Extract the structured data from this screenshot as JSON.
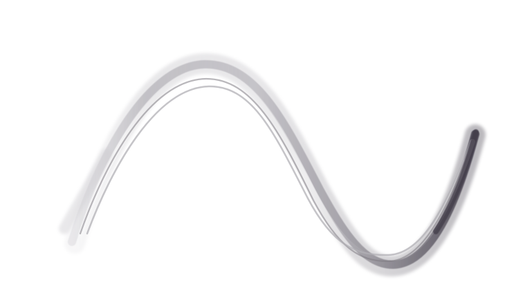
{
  "artwork": {
    "icon": "sine-wave-brush-stroke",
    "colors": {
      "background": "#ffffff",
      "stroke_light": "#d8d6dc",
      "stroke_mid": "#a9a7ae",
      "stroke_dark": "#3f3a47",
      "highlight": "#f7f7f9"
    }
  }
}
